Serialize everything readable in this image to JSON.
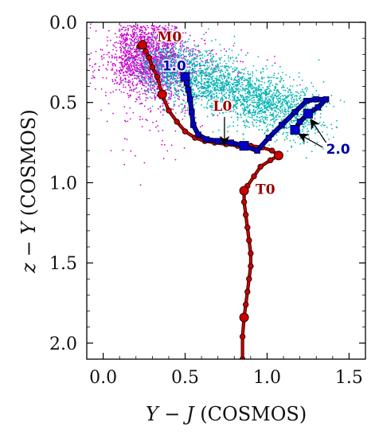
{
  "chart_data": {
    "type": "scatter",
    "title": "",
    "xlabel_var": "Y − J",
    "xlabel_unit": " (COSMOS)",
    "ylabel_var": "z − Y",
    "ylabel_unit": " (COSMOS)",
    "xlim": [
      -0.1,
      1.6
    ],
    "ylim": [
      2.1,
      0.0
    ],
    "y_inverted": true,
    "x_ticks": [
      "0.0",
      "0.5",
      "1.0",
      "1.5"
    ],
    "x_tick_values": [
      0.0,
      0.5,
      1.0,
      1.5
    ],
    "y_ticks": [
      "0.0",
      "0.5",
      "1.0",
      "1.5",
      "2.0"
    ],
    "y_tick_values": [
      0.0,
      0.5,
      1.0,
      1.5,
      2.0
    ],
    "grid": false,
    "colors": {
      "magenta_points": "#cc00cc",
      "cyan_points": "#00b3b3",
      "red_track": "#cc0000",
      "red_track_outline": "#330000",
      "blue_track": "#0000cc",
      "blue_track_outline": "#000033",
      "blue_label": "#0000aa",
      "red_label": "#990000"
    },
    "series": [
      {
        "marker": "circle",
        "x": [
          0.22,
          0.24,
          0.26,
          0.28,
          0.3,
          0.33,
          0.36,
          0.4,
          0.45,
          0.5,
          0.56,
          0.62,
          0.68,
          0.75,
          0.82,
          0.9,
          0.97,
          1.03,
          1.07,
          1.02,
          0.96,
          0.92,
          0.88,
          0.86,
          0.86,
          0.87,
          0.88,
          0.89,
          0.9,
          0.9,
          0.89,
          0.88,
          0.87,
          0.86,
          0.85,
          0.85
        ],
        "y": [
          0.15,
          0.14,
          0.18,
          0.22,
          0.28,
          0.34,
          0.45,
          0.55,
          0.62,
          0.68,
          0.72,
          0.74,
          0.75,
          0.76,
          0.77,
          0.77,
          0.78,
          0.8,
          0.83,
          0.86,
          0.9,
          0.96,
          1.02,
          1.05,
          1.12,
          1.2,
          1.28,
          1.36,
          1.44,
          1.52,
          1.6,
          1.68,
          1.76,
          1.84,
          1.96,
          2.1
        ],
        "large_marker_indices": [
          1,
          6,
          18,
          23,
          33
        ]
      },
      {
        "marker": "square",
        "x": [
          0.5,
          0.51,
          0.52,
          0.53,
          0.54,
          0.55,
          0.58,
          0.63,
          0.7,
          0.78,
          0.86,
          0.94,
          1.01,
          1.09,
          1.17,
          1.24,
          1.3,
          1.36,
          1.31,
          1.25,
          1.2,
          1.17
        ],
        "y": [
          0.34,
          0.38,
          0.42,
          0.48,
          0.56,
          0.64,
          0.7,
          0.73,
          0.74,
          0.75,
          0.77,
          0.8,
          0.72,
          0.64,
          0.56,
          0.49,
          0.48,
          0.48,
          0.53,
          0.57,
          0.62,
          0.67
        ],
        "large_marker_indices": [
          0,
          10,
          19,
          21
        ]
      }
    ],
    "scatter_clouds": [
      {
        "center": [
          0.3,
          0.28
        ],
        "spread": [
          0.22,
          0.18
        ]
      },
      {
        "center": [
          0.65,
          0.4
        ],
        "spread": [
          0.3,
          0.18
        ]
      }
    ],
    "annotations": [
      {
        "text": "M0",
        "x": 0.33,
        "y": 0.12,
        "style": "red"
      },
      {
        "text": "1.0",
        "x": 0.36,
        "y": 0.3,
        "style": "blue"
      },
      {
        "text": "L0",
        "x": 0.67,
        "y": 0.55,
        "style": "red"
      },
      {
        "text": "2.0",
        "x": 1.36,
        "y": 0.82,
        "style": "blue"
      },
      {
        "text": "T0",
        "x": 0.93,
        "y": 1.07,
        "style": "red"
      }
    ],
    "arrows": [
      {
        "from": [
          0.74,
          0.59
        ],
        "to": [
          0.74,
          0.76
        ]
      },
      {
        "from": [
          1.36,
          0.75
        ],
        "to": [
          1.27,
          0.61
        ]
      },
      {
        "from": [
          1.34,
          0.78
        ],
        "to": [
          1.2,
          0.7
        ]
      }
    ]
  }
}
